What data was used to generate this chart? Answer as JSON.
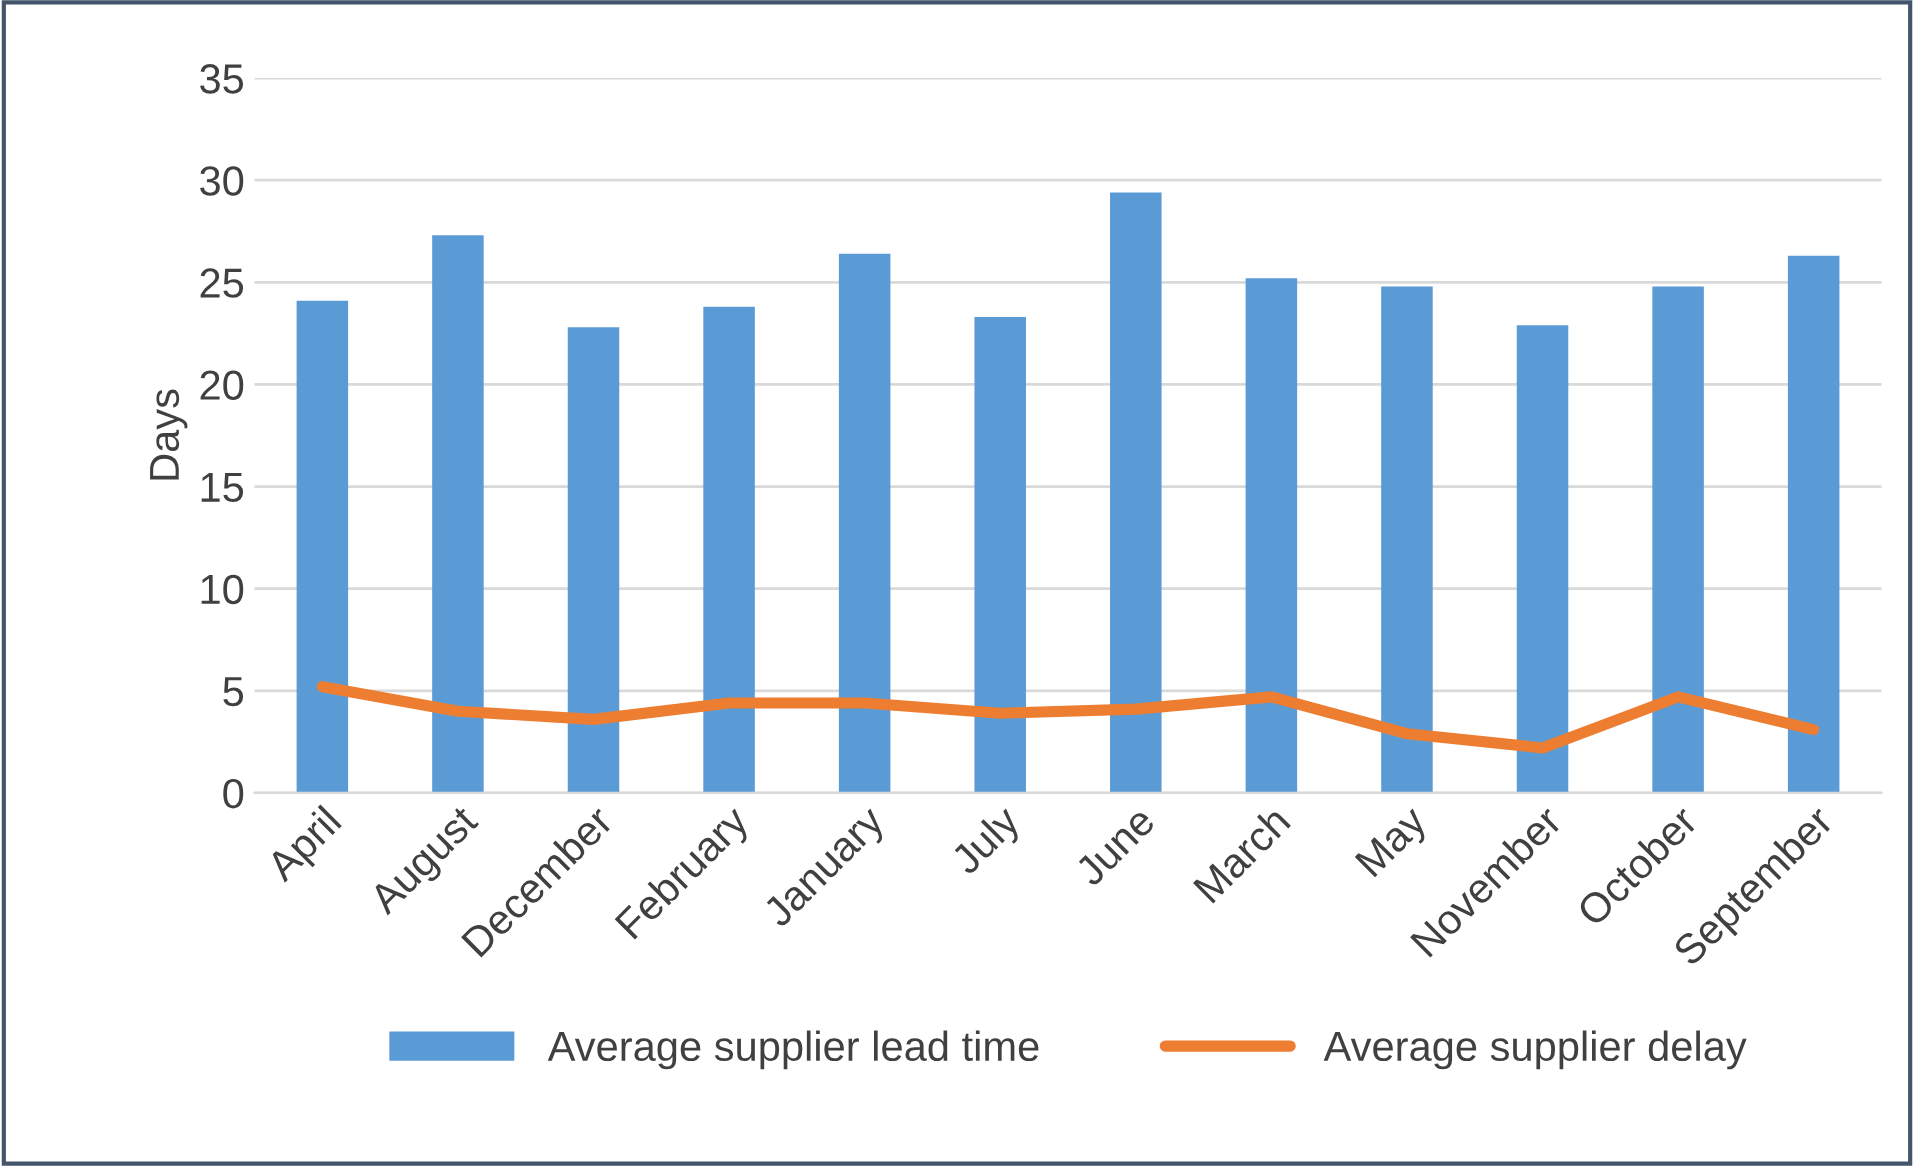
{
  "chart_data": {
    "type": "bar",
    "ylabel": "Days",
    "categories": [
      "April",
      "August",
      "December",
      "February",
      "January",
      "July",
      "June",
      "March",
      "May",
      "November",
      "October",
      "September"
    ],
    "series": [
      {
        "name": "Average supplier lead time",
        "color": "#5b9bd5",
        "values": [
          24.1,
          27.3,
          22.8,
          23.8,
          26.4,
          23.3,
          29.4,
          25.2,
          24.8,
          22.9,
          24.8,
          26.3
        ]
      },
      {
        "name": "Average supplier delay",
        "color": "#ed7d31",
        "type": "line",
        "values": [
          5.2,
          4.0,
          3.6,
          4.4,
          4.4,
          3.9,
          4.1,
          4.7,
          2.9,
          2.2,
          4.7,
          3.1
        ]
      }
    ],
    "ylim": [
      0,
      35
    ],
    "yticks": [
      0,
      5,
      10,
      15,
      20,
      25,
      30,
      35
    ],
    "grid": "y",
    "legend": "bottom"
  }
}
